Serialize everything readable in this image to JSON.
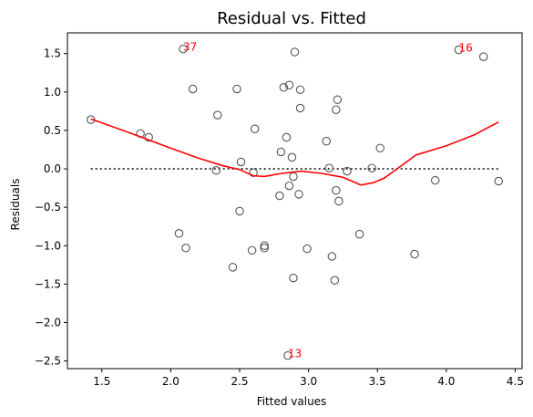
{
  "chart_data": {
    "type": "scatter",
    "title": "Residual vs. Fitted",
    "xlabel": "Fitted values",
    "ylabel": "Residuals",
    "xlim": [
      1.25,
      4.55
    ],
    "ylim": [
      -2.6,
      1.77
    ],
    "xticks": [
      1.5,
      2.0,
      2.5,
      3.0,
      3.5,
      4.0,
      4.5
    ],
    "yticks": [
      -2.5,
      -2.0,
      -1.5,
      -1.0,
      -0.5,
      0.0,
      0.5,
      1.0,
      1.5
    ],
    "xtick_labels": [
      "1.5",
      "2.0",
      "2.5",
      "3.0",
      "3.5",
      "4.0",
      "4.5"
    ],
    "ytick_labels": [
      "−2.5",
      "−2.0",
      "−1.5",
      "−1.0",
      "−0.5",
      "0.0",
      "0.5",
      "1.0",
      "1.5"
    ],
    "grid": false,
    "points": [
      {
        "x": 1.42,
        "y": 0.64
      },
      {
        "x": 1.78,
        "y": 0.46
      },
      {
        "x": 1.84,
        "y": 0.41
      },
      {
        "x": 2.06,
        "y": -0.84
      },
      {
        "x": 2.09,
        "y": 1.56
      },
      {
        "x": 2.11,
        "y": -1.03
      },
      {
        "x": 2.16,
        "y": 1.04
      },
      {
        "x": 2.33,
        "y": -0.02
      },
      {
        "x": 2.34,
        "y": 0.7
      },
      {
        "x": 2.45,
        "y": -1.28
      },
      {
        "x": 2.48,
        "y": 1.04
      },
      {
        "x": 2.5,
        "y": -0.55
      },
      {
        "x": 2.51,
        "y": 0.09
      },
      {
        "x": 2.59,
        "y": -1.06
      },
      {
        "x": 2.6,
        "y": -0.05
      },
      {
        "x": 2.61,
        "y": 0.52
      },
      {
        "x": 2.68,
        "y": -1.0
      },
      {
        "x": 2.68,
        "y": -1.03
      },
      {
        "x": 2.79,
        "y": -0.35
      },
      {
        "x": 2.8,
        "y": 0.22
      },
      {
        "x": 2.82,
        "y": 1.06
      },
      {
        "x": 2.84,
        "y": 0.41
      },
      {
        "x": 2.85,
        "y": -2.43
      },
      {
        "x": 2.86,
        "y": -0.22
      },
      {
        "x": 2.86,
        "y": 1.09
      },
      {
        "x": 2.88,
        "y": 0.15
      },
      {
        "x": 2.89,
        "y": -1.42
      },
      {
        "x": 2.89,
        "y": -0.1
      },
      {
        "x": 2.9,
        "y": 1.52
      },
      {
        "x": 2.93,
        "y": -0.33
      },
      {
        "x": 2.94,
        "y": 1.03
      },
      {
        "x": 2.94,
        "y": 0.79
      },
      {
        "x": 2.99,
        "y": -1.04
      },
      {
        "x": 3.13,
        "y": 0.36
      },
      {
        "x": 3.15,
        "y": 0.01
      },
      {
        "x": 3.17,
        "y": -1.14
      },
      {
        "x": 3.19,
        "y": -1.45
      },
      {
        "x": 3.2,
        "y": -0.28
      },
      {
        "x": 3.2,
        "y": 0.77
      },
      {
        "x": 3.21,
        "y": 0.9
      },
      {
        "x": 3.22,
        "y": -0.42
      },
      {
        "x": 3.28,
        "y": -0.03
      },
      {
        "x": 3.37,
        "y": -0.85
      },
      {
        "x": 3.46,
        "y": 0.01
      },
      {
        "x": 3.52,
        "y": 0.27
      },
      {
        "x": 3.77,
        "y": -1.11
      },
      {
        "x": 3.92,
        "y": -0.15
      },
      {
        "x": 4.09,
        "y": 1.55
      },
      {
        "x": 4.27,
        "y": 1.46
      },
      {
        "x": 4.38,
        "y": -0.16
      }
    ],
    "lowess": {
      "x": [
        1.42,
        1.7,
        2.0,
        2.2,
        2.38,
        2.5,
        2.6,
        2.68,
        2.8,
        2.95,
        3.1,
        3.25,
        3.38,
        3.47,
        3.55,
        3.65,
        3.78,
        4.0,
        4.2,
        4.38
      ],
      "y": [
        0.65,
        0.47,
        0.27,
        0.14,
        0.04,
        -0.01,
        -0.09,
        -0.1,
        -0.06,
        -0.03,
        -0.06,
        -0.11,
        -0.21,
        -0.18,
        -0.12,
        0.01,
        0.18,
        0.3,
        0.44,
        0.61
      ]
    },
    "reference_line": {
      "y": 0.0,
      "x": [
        1.42,
        4.38
      ],
      "style": "dotted"
    },
    "annotations": [
      {
        "text": "37",
        "x": 2.09,
        "y": 1.56
      },
      {
        "text": "16",
        "x": 4.09,
        "y": 1.55
      },
      {
        "text": "13",
        "x": 2.85,
        "y": -2.43
      }
    ],
    "colors": {
      "points": "#555555",
      "lowess": "#ff0000",
      "reference": "#000000",
      "annotations": "#ff0000"
    }
  }
}
